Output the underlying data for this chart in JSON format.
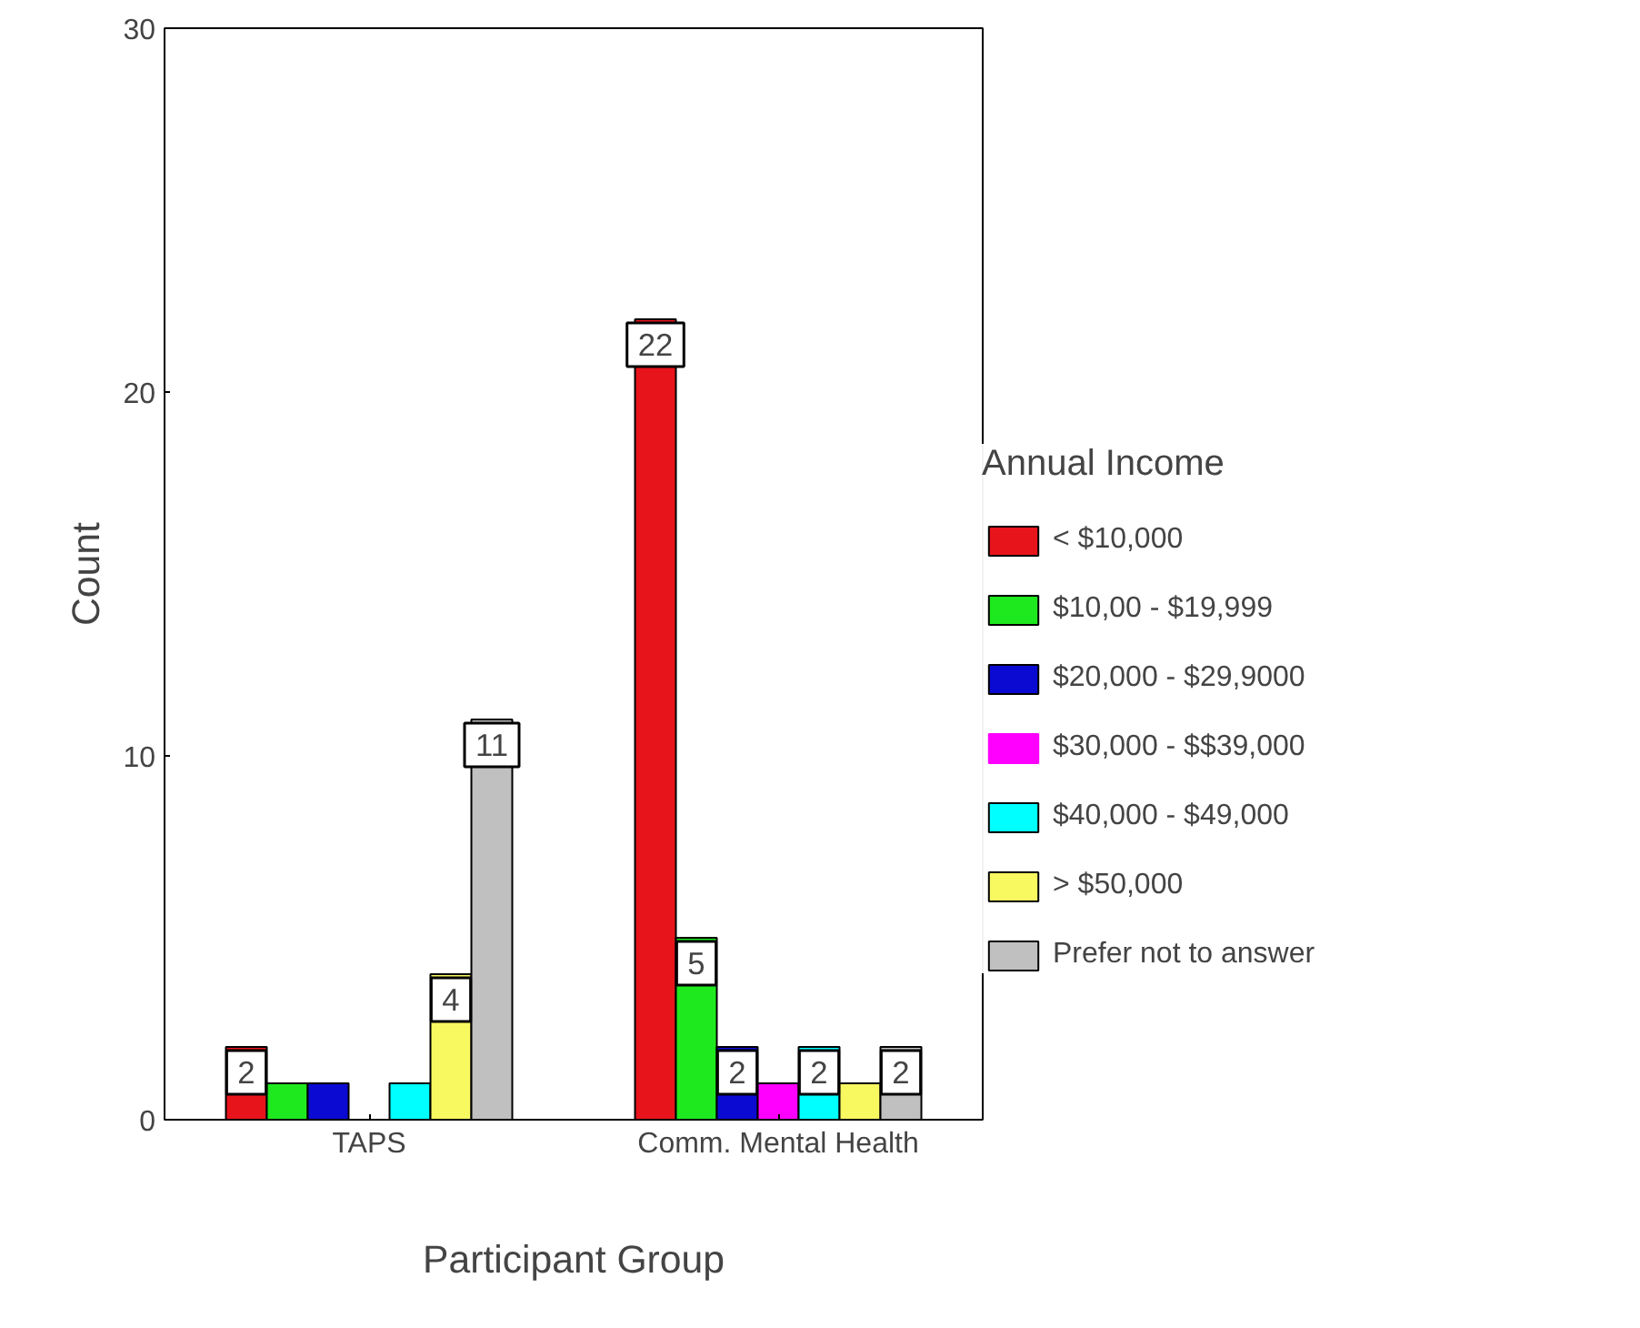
{
  "chart_data": {
    "type": "bar",
    "xlabel": "Participant Group",
    "ylabel": "Count",
    "legend_title": "Annual Income",
    "categories": [
      "TAPS",
      "Comm. Mental Health"
    ],
    "series": [
      {
        "name": "< $10,000",
        "color": "#e8141c",
        "values": [
          2,
          22
        ],
        "value_labels": [
          "2",
          "22"
        ]
      },
      {
        "name": "$10,00 - $19,999",
        "color": "#1ee81e",
        "values": [
          1,
          5
        ],
        "value_labels": [
          null,
          "5"
        ]
      },
      {
        "name": "$20,000 - $29,9000",
        "color": "#0a0ad2",
        "values": [
          1,
          2
        ],
        "value_labels": [
          null,
          "2"
        ]
      },
      {
        "name": "$30,000 - $$39,000",
        "color": "#ff00ff",
        "values": [
          0,
          1
        ],
        "value_labels": [
          null,
          null
        ]
      },
      {
        "name": "$40,000 - $49,000",
        "color": "#00ffff",
        "values": [
          1,
          2
        ],
        "value_labels": [
          null,
          "2"
        ]
      },
      {
        "name": "> $50,000",
        "color": "#f8f860",
        "values": [
          4,
          1
        ],
        "value_labels": [
          "4",
          null
        ]
      },
      {
        "name": "Prefer not to answer",
        "color": "#c0c0c0",
        "values": [
          11,
          2
        ],
        "value_labels": [
          "11",
          "2"
        ]
      }
    ],
    "ylim": [
      0,
      30
    ],
    "yticks": [
      0,
      10,
      20,
      30
    ],
    "grid": false,
    "legend": "right"
  }
}
